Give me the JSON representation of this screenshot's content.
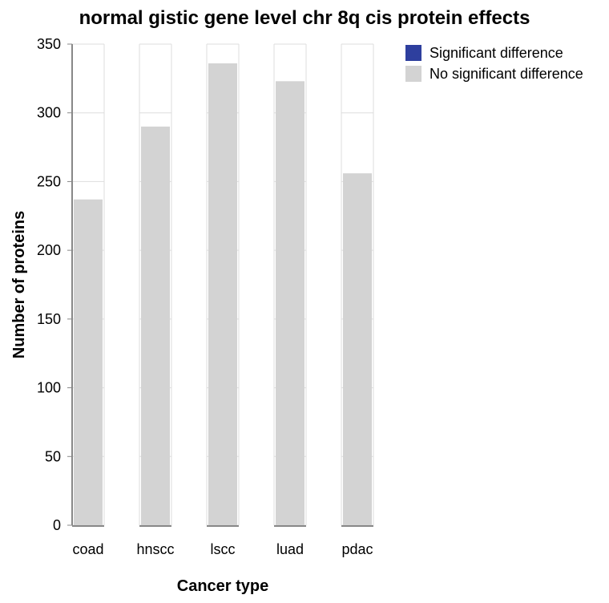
{
  "chart_data": {
    "type": "bar",
    "title": "normal gistic gene level chr 8q cis protein effects",
    "xlabel": "Cancer type",
    "ylabel": "Number of proteins",
    "ylim": [
      0,
      350
    ],
    "yticks": [
      0,
      50,
      100,
      150,
      200,
      250,
      300,
      350
    ],
    "categories": [
      "coad",
      "hnscc",
      "lscc",
      "luad",
      "pdac"
    ],
    "series": [
      {
        "name": "Significant difference",
        "color": "#2e3f9e",
        "values": [
          0,
          0,
          0,
          0,
          0
        ]
      },
      {
        "name": "No significant difference",
        "color": "#d3d3d3",
        "values": [
          237,
          290,
          336,
          323,
          256
        ]
      }
    ],
    "grid": true,
    "legend_position": "top-right"
  }
}
